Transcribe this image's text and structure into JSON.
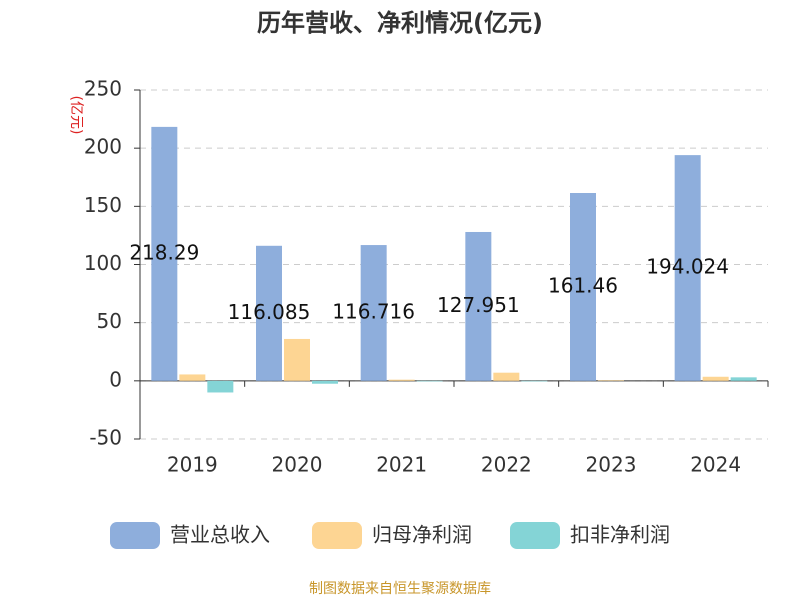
{
  "chart_data": {
    "type": "bar",
    "title": "历年营收、净利情况(亿元)",
    "y_label": "(亿元)",
    "categories": [
      "2019",
      "2020",
      "2021",
      "2022",
      "2023",
      "2024"
    ],
    "series": [
      {
        "name": "营业总收入",
        "color": "#8eaedc",
        "values": [
          218.29,
          116.085,
          116.716,
          127.951,
          161.46,
          194.024
        ],
        "value_labels": [
          "218.29",
          "116.085",
          "116.716",
          "127.951",
          "161.46",
          "194.024"
        ]
      },
      {
        "name": "归母净利润",
        "color": "#fdd593",
        "values": [
          5.5,
          36,
          1,
          7,
          0.5,
          3.5
        ]
      },
      {
        "name": "扣非净利润",
        "color": "#84d4d6",
        "values": [
          -10,
          -2.5,
          -0.5,
          -0.5,
          0,
          3
        ]
      }
    ],
    "ylim": [
      -50,
      250
    ],
    "yticks": [
      -50,
      0,
      50,
      100,
      150,
      200,
      250
    ],
    "grid": true,
    "source": "制图数据来自恒生聚源数据库"
  }
}
